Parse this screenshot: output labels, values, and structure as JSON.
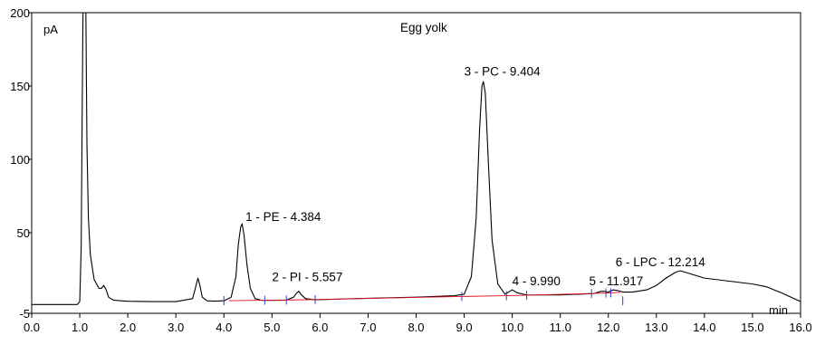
{
  "chart_data": {
    "type": "line",
    "title": "Egg yolk",
    "xlabel": "min",
    "ylabel": "pA",
    "xlim": [
      0.0,
      16.0
    ],
    "ylim": [
      -5,
      200
    ],
    "x_ticks": [
      "0.0",
      "1.0",
      "2.0",
      "3.0",
      "4.0",
      "5.0",
      "6.0",
      "7.0",
      "8.0",
      "9.0",
      "10.0",
      "11.0",
      "12.0",
      "13.0",
      "14.0",
      "15.0",
      "16.0"
    ],
    "y_ticks": [
      "-5",
      "50",
      "100",
      "150",
      "200"
    ],
    "grid": false,
    "series": [
      {
        "line_color": "#000000",
        "x": [
          0.0,
          0.5,
          0.95,
          1.0,
          1.03,
          1.05,
          1.08,
          1.12,
          1.15,
          1.18,
          1.22,
          1.3,
          1.4,
          1.45,
          1.5,
          1.55,
          1.6,
          1.7,
          1.85,
          2.0,
          2.5,
          3.0,
          3.35,
          3.42,
          3.46,
          3.5,
          3.55,
          3.65,
          3.8,
          4.0,
          4.15,
          4.25,
          4.3,
          4.35,
          4.38,
          4.42,
          4.48,
          4.55,
          4.65,
          4.8,
          5.0,
          5.3,
          5.45,
          5.52,
          5.56,
          5.6,
          5.7,
          5.9,
          6.5,
          7.0,
          8.0,
          8.8,
          9.0,
          9.15,
          9.25,
          9.32,
          9.37,
          9.4,
          9.44,
          9.5,
          9.58,
          9.7,
          9.85,
          9.95,
          10.0,
          10.1,
          10.3,
          11.0,
          11.7,
          11.85,
          11.92,
          12.0,
          12.1,
          12.2,
          12.3,
          12.5,
          12.8,
          13.0,
          13.2,
          13.4,
          13.5,
          13.6,
          13.8,
          14.0,
          14.5,
          15.0,
          15.3,
          15.6,
          16.0
        ],
        "y": [
          1,
          1,
          1,
          3,
          40,
          130,
          250,
          230,
          110,
          60,
          35,
          18,
          12,
          12,
          14,
          11,
          6,
          4,
          3.5,
          3.2,
          3,
          3,
          5,
          14,
          19,
          14,
          6,
          3.5,
          3.3,
          3.5,
          6,
          20,
          42,
          54,
          56,
          48,
          28,
          12,
          5,
          3.8,
          3.8,
          4,
          6,
          9,
          10,
          8,
          5,
          4.2,
          4.8,
          5.2,
          6,
          7,
          8,
          20,
          60,
          120,
          150,
          153,
          145,
          100,
          45,
          15,
          8,
          10,
          11,
          9,
          7.5,
          7.5,
          8.5,
          10,
          10,
          9.5,
          11,
          10.5,
          9.5,
          9.5,
          11,
          14,
          19,
          23,
          24,
          23,
          21,
          19,
          17,
          15,
          13,
          9,
          3
        ]
      },
      {
        "line_color": "#e8101f",
        "x": [
          4.1,
          4.8,
          5.4,
          5.9,
          9.0,
          9.85,
          10.3,
          11.75,
          12.0,
          12.25
        ],
        "y": [
          3.6,
          3.9,
          4.1,
          4.4,
          6.5,
          7.0,
          7.3,
          8.6,
          8.9,
          9.3
        ]
      }
    ],
    "annotations": [
      {
        "text": "1 - PE - 4.384",
        "x": 4.45,
        "y": 58
      },
      {
        "text": "2 - PI - 5.557",
        "x": 5.0,
        "y": 17
      },
      {
        "text": "3 - PC - 9.404",
        "x": 9.0,
        "y": 157
      },
      {
        "text": "4 - 9.990",
        "x": 10.0,
        "y": 14
      },
      {
        "text": "5 - 11.917",
        "x": 11.6,
        "y": 14
      },
      {
        "text": "6 - LPC - 12.214",
        "x": 12.15,
        "y": 27
      }
    ],
    "integration_markers_x": [
      4.0,
      4.85,
      5.3,
      5.9,
      8.95,
      9.88,
      10.3,
      11.65,
      11.95,
      12.05,
      12.3
    ]
  }
}
